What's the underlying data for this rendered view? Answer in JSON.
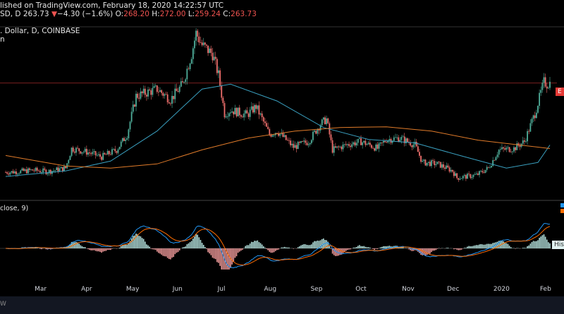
{
  "header": {
    "published_text": "lished on TradingView.com, February 18, 2020 14:22:57 UTC",
    "ticker_line": "SD, D",
    "current_price": "263.73",
    "change_arrow": "▼",
    "change": "−4.30 (−1.6%)",
    "o_label": "O:",
    "o_value": "268.20",
    "h_label": "H:",
    "h_value": "272.00",
    "l_label": "L:",
    "l_value": "259.24",
    "c_label": "C:",
    "c_value": "263.73",
    "symbol_desc": ". Dollar, D, COINBASE",
    "pane_label": "n"
  },
  "macd": {
    "label": "close, 9)",
    "hist_tag": "Hist"
  },
  "price_tag": "E",
  "bottom_text": "W",
  "colors": {
    "up": "#4fae9a",
    "down": "#ee6f6c",
    "ma_fast": "#3aa0c0",
    "ma_slow": "#e07b2a",
    "macd_line": "#2196f3",
    "signal_line": "#ff6d00",
    "hline": "#7a1f1f",
    "price_tag_bg": "#e53935"
  },
  "chart_data": {
    "type": "candlestick",
    "x_tick_labels": [
      "Mar",
      "Apr",
      "May",
      "Jun",
      "Jul",
      "Aug",
      "Sep",
      "Oct",
      "Nov",
      "Dec",
      "2020",
      "Feb"
    ],
    "price_close_path": [
      [
        "2019-02-20",
        136
      ],
      [
        "2019-03-01",
        137
      ],
      [
        "2019-03-10",
        139
      ],
      [
        "2019-03-20",
        137
      ],
      [
        "2019-04-01",
        142
      ],
      [
        "2019-04-05",
        170
      ],
      [
        "2019-04-15",
        165
      ],
      [
        "2019-04-25",
        158
      ],
      [
        "2019-05-05",
        168
      ],
      [
        "2019-05-12",
        190
      ],
      [
        "2019-05-18",
        245
      ],
      [
        "2019-05-25",
        250
      ],
      [
        "2019-06-01",
        255
      ],
      [
        "2019-06-10",
        240
      ],
      [
        "2019-06-18",
        262
      ],
      [
        "2019-06-24",
        305
      ],
      [
        "2019-06-27",
        335
      ],
      [
        "2019-07-01",
        318
      ],
      [
        "2019-07-08",
        305
      ],
      [
        "2019-07-12",
        275
      ],
      [
        "2019-07-16",
        220
      ],
      [
        "2019-07-20",
        225
      ],
      [
        "2019-07-31",
        218
      ],
      [
        "2019-08-06",
        230
      ],
      [
        "2019-08-15",
        190
      ],
      [
        "2019-08-20",
        195
      ],
      [
        "2019-08-31",
        172
      ],
      [
        "2019-09-10",
        180
      ],
      [
        "2019-09-18",
        205
      ],
      [
        "2019-09-22",
        212
      ],
      [
        "2019-09-26",
        168
      ],
      [
        "2019-10-05",
        175
      ],
      [
        "2019-10-15",
        180
      ],
      [
        "2019-10-26",
        170
      ],
      [
        "2019-11-01",
        183
      ],
      [
        "2019-11-10",
        185
      ],
      [
        "2019-11-20",
        175
      ],
      [
        "2019-11-25",
        150
      ],
      [
        "2019-12-05",
        148
      ],
      [
        "2019-12-15",
        138
      ],
      [
        "2019-12-18",
        128
      ],
      [
        "2019-12-31",
        132
      ],
      [
        "2020-01-08",
        142
      ],
      [
        "2020-01-15",
        168
      ],
      [
        "2020-01-25",
        170
      ],
      [
        "2020-02-01",
        180
      ],
      [
        "2020-02-08",
        220
      ],
      [
        "2020-02-14",
        265
      ],
      [
        "2020-02-16",
        262
      ],
      [
        "2020-02-18",
        263.73
      ]
    ],
    "ma_fast_path": [
      [
        "2019-02-20",
        130
      ],
      [
        "2019-04-01",
        138
      ],
      [
        "2019-05-01",
        152
      ],
      [
        "2019-06-01",
        195
      ],
      [
        "2019-07-01",
        255
      ],
      [
        "2019-07-20",
        262
      ],
      [
        "2019-08-20",
        238
      ],
      [
        "2019-09-20",
        200
      ],
      [
        "2019-10-20",
        183
      ],
      [
        "2019-11-20",
        178
      ],
      [
        "2019-12-20",
        160
      ],
      [
        "2020-01-20",
        142
      ],
      [
        "2020-02-10",
        150
      ],
      [
        "2020-02-18",
        175
      ]
    ],
    "ma_slow_path": [
      [
        "2019-02-20",
        160
      ],
      [
        "2019-04-01",
        145
      ],
      [
        "2019-05-01",
        142
      ],
      [
        "2019-06-01",
        148
      ],
      [
        "2019-07-01",
        168
      ],
      [
        "2019-08-01",
        185
      ],
      [
        "2019-09-01",
        195
      ],
      [
        "2019-10-01",
        200
      ],
      [
        "2019-11-01",
        201
      ],
      [
        "2019-12-01",
        195
      ],
      [
        "2020-01-01",
        182
      ],
      [
        "2020-02-18",
        170
      ]
    ],
    "horizontal_line_value": 263.73,
    "macd": {
      "hist_label": "Hist"
    }
  }
}
